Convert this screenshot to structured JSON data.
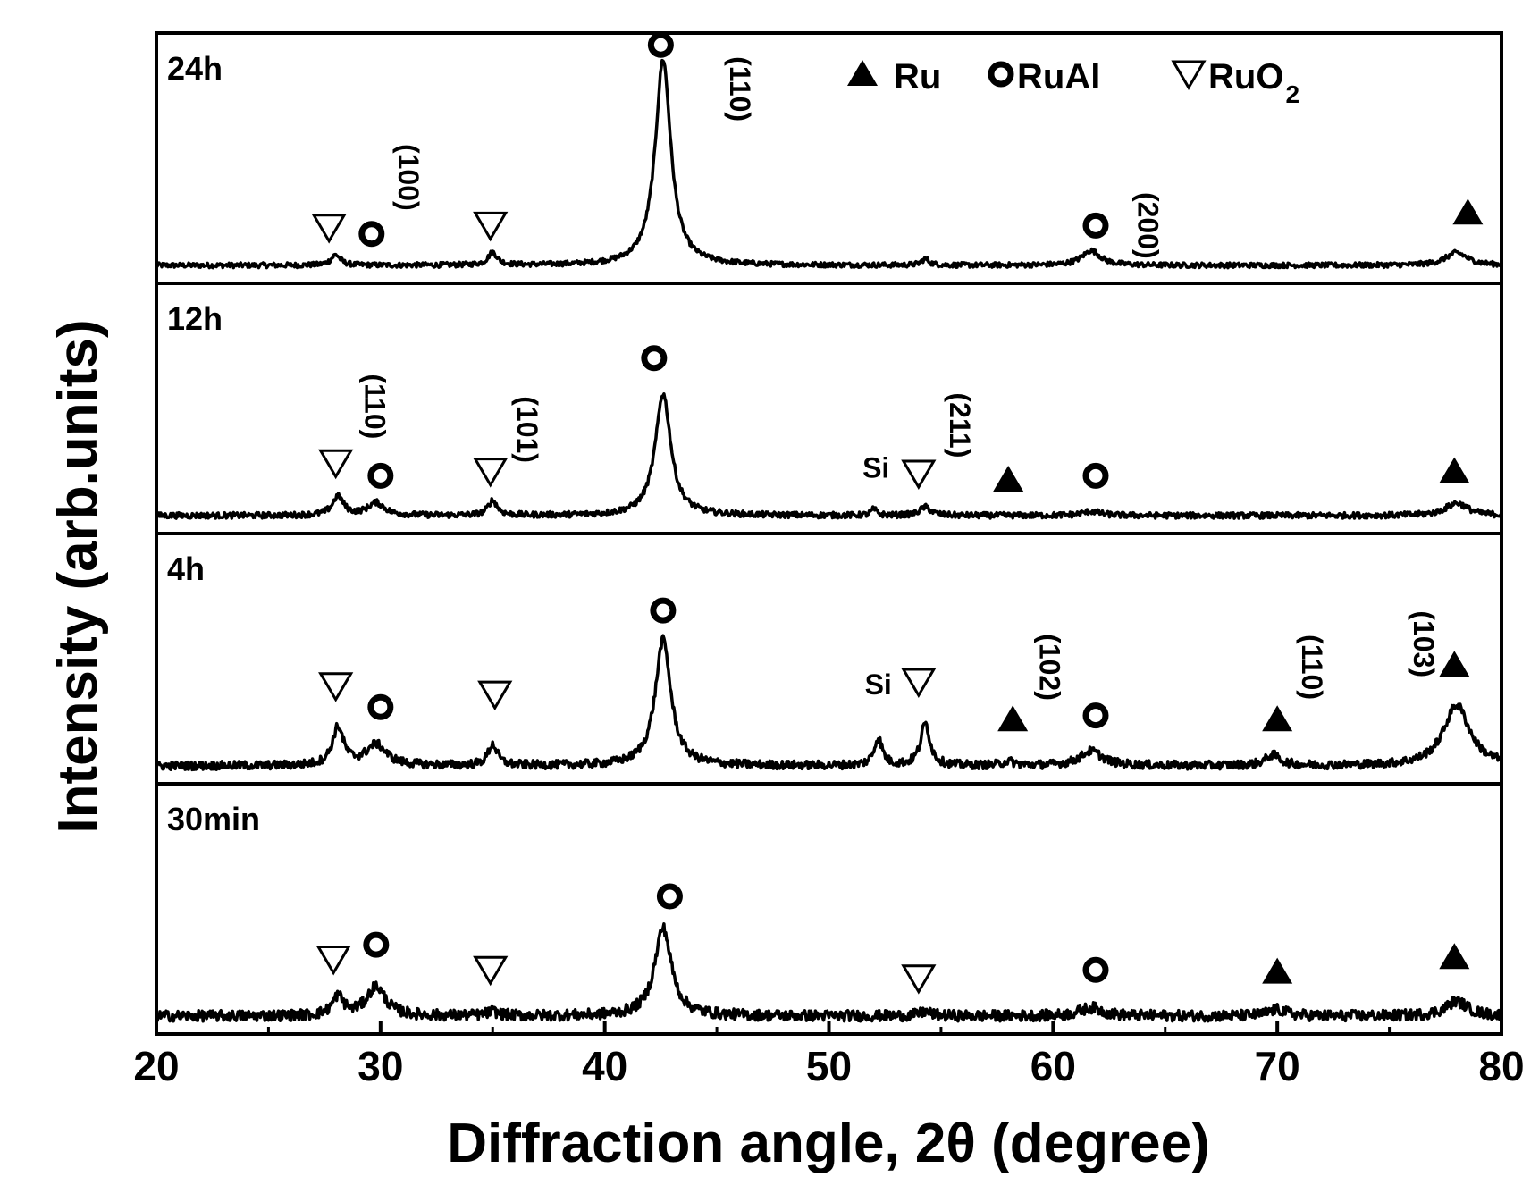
{
  "chart_data": {
    "type": "line",
    "xlabel": "Diffraction angle, 2θ (degree)",
    "ylabel": "Intensity (arb.units)",
    "xlim": [
      20,
      80
    ],
    "xticks": [
      20,
      30,
      40,
      50,
      60,
      70,
      80
    ],
    "grid": false,
    "legend": {
      "position": "top-right",
      "entries": [
        {
          "symbol": "filled-triangle",
          "label": "Ru"
        },
        {
          "symbol": "open-circle",
          "label": "RuAl"
        },
        {
          "symbol": "open-inverted-triangle",
          "label": "RuO",
          "subscript": "2"
        }
      ]
    },
    "panels": [
      {
        "label": "24h",
        "noise": 0.012,
        "peaks": [
          {
            "x": 28.0,
            "h": 0.05,
            "w": 0.25
          },
          {
            "x": 35.0,
            "h": 0.06,
            "w": 0.25
          },
          {
            "x": 42.6,
            "h": 0.98,
            "w": 0.42
          },
          {
            "x": 54.3,
            "h": 0.03,
            "w": 0.2
          },
          {
            "x": 61.7,
            "h": 0.07,
            "w": 0.5
          },
          {
            "x": 78.0,
            "h": 0.06,
            "w": 0.6
          }
        ],
        "markers": [
          {
            "type": "ruo2",
            "x": 27.7,
            "y": 0.18
          },
          {
            "type": "rual",
            "x": 29.6,
            "y": 0.15
          },
          {
            "type": "ruo2",
            "x": 34.9,
            "y": 0.19
          },
          {
            "type": "rual",
            "x": 42.5,
            "y": 1.05
          },
          {
            "type": "rual",
            "x": 61.9,
            "y": 0.19
          },
          {
            "type": "ru",
            "x": 78.5,
            "y": 0.25
          }
        ],
        "annotations": [
          {
            "text": "(100)",
            "x": 30.8,
            "y": 0.42,
            "rotate": true
          },
          {
            "text": "(110)",
            "x": 45.6,
            "y": 0.84,
            "rotate": true
          },
          {
            "text": "(200)",
            "x": 63.8,
            "y": 0.19,
            "rotate": true
          }
        ]
      },
      {
        "label": "12h",
        "noise": 0.014,
        "peaks": [
          {
            "x": 28.1,
            "h": 0.09,
            "w": 0.3
          },
          {
            "x": 29.8,
            "h": 0.06,
            "w": 0.45
          },
          {
            "x": 35.0,
            "h": 0.07,
            "w": 0.25
          },
          {
            "x": 42.6,
            "h": 0.58,
            "w": 0.42
          },
          {
            "x": 52.0,
            "h": 0.03,
            "w": 0.15
          },
          {
            "x": 54.3,
            "h": 0.04,
            "w": 0.3
          },
          {
            "x": 61.7,
            "h": 0.02,
            "w": 0.5
          },
          {
            "x": 78.0,
            "h": 0.06,
            "w": 0.6
          }
        ],
        "markers": [
          {
            "type": "ruo2",
            "x": 28.0,
            "y": 0.25
          },
          {
            "type": "rual",
            "x": 30.0,
            "y": 0.19
          },
          {
            "type": "ruo2",
            "x": 34.9,
            "y": 0.21
          },
          {
            "type": "rual",
            "x": 42.2,
            "y": 0.75
          },
          {
            "type": "ruo2",
            "x": 54.0,
            "y": 0.2
          },
          {
            "type": "ru",
            "x": 58.0,
            "y": 0.17
          },
          {
            "type": "rual",
            "x": 61.9,
            "y": 0.19
          },
          {
            "type": "ru",
            "x": 77.9,
            "y": 0.21
          }
        ],
        "annotations": [
          {
            "text": "(110)",
            "x": 29.3,
            "y": 0.52,
            "rotate": true
          },
          {
            "text": "(101)",
            "x": 36.1,
            "y": 0.41,
            "rotate": true
          },
          {
            "text": "(211)",
            "x": 55.4,
            "y": 0.43,
            "rotate": true
          },
          {
            "text": "Si",
            "x": 52.1,
            "y": 0.18,
            "rotate": false
          }
        ]
      },
      {
        "label": "4h",
        "noise": 0.02,
        "peaks": [
          {
            "x": 28.1,
            "h": 0.18,
            "w": 0.3
          },
          {
            "x": 29.8,
            "h": 0.1,
            "w": 0.55
          },
          {
            "x": 35.0,
            "h": 0.1,
            "w": 0.25
          },
          {
            "x": 42.6,
            "h": 0.6,
            "w": 0.42
          },
          {
            "x": 52.2,
            "h": 0.13,
            "w": 0.22
          },
          {
            "x": 54.3,
            "h": 0.2,
            "w": 0.25
          },
          {
            "x": 58.0,
            "h": 0.02,
            "w": 0.3
          },
          {
            "x": 61.7,
            "h": 0.07,
            "w": 0.6
          },
          {
            "x": 69.8,
            "h": 0.05,
            "w": 0.4
          },
          {
            "x": 78.0,
            "h": 0.29,
            "w": 0.7
          }
        ],
        "markers": [
          {
            "type": "ruo2",
            "x": 28.0,
            "y": 0.38
          },
          {
            "type": "rual",
            "x": 30.0,
            "y": 0.28
          },
          {
            "type": "ruo2",
            "x": 35.1,
            "y": 0.34
          },
          {
            "type": "rual",
            "x": 42.6,
            "y": 0.74
          },
          {
            "type": "ruo2",
            "x": 54.0,
            "y": 0.4
          },
          {
            "type": "ru",
            "x": 58.2,
            "y": 0.22
          },
          {
            "type": "rual",
            "x": 61.9,
            "y": 0.24
          },
          {
            "type": "ru",
            "x": 70.0,
            "y": 0.22
          },
          {
            "type": "ru",
            "x": 77.9,
            "y": 0.48
          }
        ],
        "annotations": [
          {
            "text": "Si",
            "x": 52.2,
            "y": 0.34,
            "rotate": false
          },
          {
            "text": "(102)",
            "x": 59.4,
            "y": 0.47,
            "rotate": true
          },
          {
            "text": "(110)",
            "x": 71.1,
            "y": 0.47,
            "rotate": true
          },
          {
            "text": "(103)",
            "x": 76.1,
            "y": 0.58,
            "rotate": true
          }
        ]
      },
      {
        "label": "30min",
        "noise": 0.026,
        "peaks": [
          {
            "x": 28.1,
            "h": 0.09,
            "w": 0.3
          },
          {
            "x": 29.8,
            "h": 0.14,
            "w": 0.5
          },
          {
            "x": 35.0,
            "h": 0.02,
            "w": 0.3
          },
          {
            "x": 42.6,
            "h": 0.42,
            "w": 0.45
          },
          {
            "x": 54.3,
            "h": 0.02,
            "w": 0.3
          },
          {
            "x": 61.7,
            "h": 0.04,
            "w": 0.6
          },
          {
            "x": 70.0,
            "h": 0.03,
            "w": 0.5
          },
          {
            "x": 78.0,
            "h": 0.07,
            "w": 0.6
          }
        ],
        "markers": [
          {
            "type": "ruo2",
            "x": 27.9,
            "y": 0.27
          },
          {
            "type": "rual",
            "x": 29.8,
            "y": 0.34
          },
          {
            "type": "ruo2",
            "x": 34.9,
            "y": 0.22
          },
          {
            "type": "rual",
            "x": 42.9,
            "y": 0.57
          },
          {
            "type": "ruo2",
            "x": 54.0,
            "y": 0.18
          },
          {
            "type": "rual",
            "x": 61.9,
            "y": 0.22
          },
          {
            "type": "ru",
            "x": 70.0,
            "y": 0.21
          },
          {
            "type": "ru",
            "x": 77.9,
            "y": 0.28
          }
        ],
        "annotations": []
      }
    ]
  }
}
